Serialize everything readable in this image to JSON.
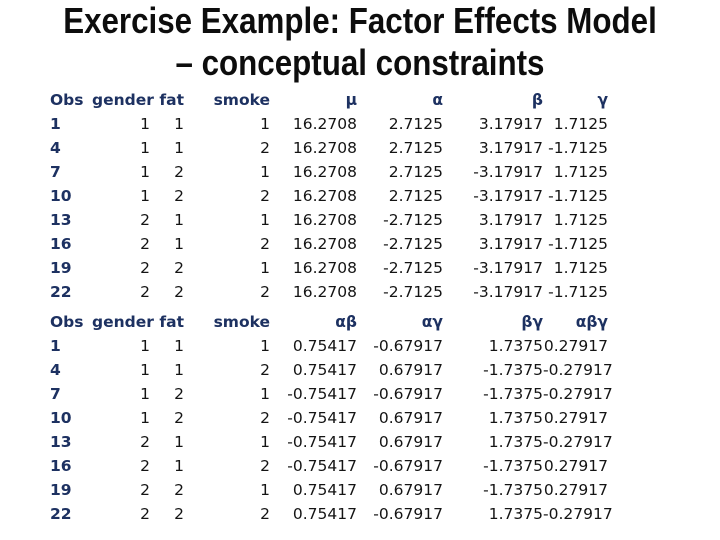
{
  "title": {
    "line1": "Exercise Example: Factor Effects Model",
    "line2": "– conceptual constraints"
  },
  "colors": {
    "header_navy": "#1d3161",
    "body_text": "#141414",
    "title_text": "#0d0d0d",
    "background": "#ffffff"
  },
  "table1": {
    "columns": [
      "Obs",
      "gender",
      "fat",
      "smoke",
      "μ",
      "α",
      "β",
      "γ"
    ],
    "rows": [
      [
        "1",
        "1",
        "1",
        "1",
        "16.2708",
        "2.7125",
        "3.17917",
        "1.7125"
      ],
      [
        "4",
        "1",
        "1",
        "2",
        "16.2708",
        "2.7125",
        "3.17917",
        "-1.7125"
      ],
      [
        "7",
        "1",
        "2",
        "1",
        "16.2708",
        "2.7125",
        "-3.17917",
        "1.7125"
      ],
      [
        "10",
        "1",
        "2",
        "2",
        "16.2708",
        "2.7125",
        "-3.17917",
        "-1.7125"
      ],
      [
        "13",
        "2",
        "1",
        "1",
        "16.2708",
        "-2.7125",
        "3.17917",
        "1.7125"
      ],
      [
        "16",
        "2",
        "1",
        "2",
        "16.2708",
        "-2.7125",
        "3.17917",
        "-1.7125"
      ],
      [
        "19",
        "2",
        "2",
        "1",
        "16.2708",
        "-2.7125",
        "-3.17917",
        "1.7125"
      ],
      [
        "22",
        "2",
        "2",
        "2",
        "16.2708",
        "-2.7125",
        "-3.17917",
        "-1.7125"
      ]
    ]
  },
  "table2": {
    "columns": [
      "Obs",
      "gender",
      "fat",
      "smoke",
      "αβ",
      "αγ",
      "βγ",
      "αβγ"
    ],
    "rows": [
      [
        "1",
        "1",
        "1",
        "1",
        "0.75417",
        "-0.67917",
        "1.7375",
        "0.27917"
      ],
      [
        "4",
        "1",
        "1",
        "2",
        "0.75417",
        "0.67917",
        "-1.7375",
        "-0.27917"
      ],
      [
        "7",
        "1",
        "2",
        "1",
        "-0.75417",
        "-0.67917",
        "-1.7375",
        "-0.27917"
      ],
      [
        "10",
        "1",
        "2",
        "2",
        "-0.75417",
        "0.67917",
        "1.7375",
        "0.27917"
      ],
      [
        "13",
        "2",
        "1",
        "1",
        "-0.75417",
        "0.67917",
        "1.7375",
        "-0.27917"
      ],
      [
        "16",
        "2",
        "1",
        "2",
        "-0.75417",
        "-0.67917",
        "-1.7375",
        "0.27917"
      ],
      [
        "19",
        "2",
        "2",
        "1",
        "0.75417",
        "0.67917",
        "-1.7375",
        "0.27917"
      ],
      [
        "22",
        "2",
        "2",
        "2",
        "0.75417",
        "-0.67917",
        "1.7375",
        "-0.27917"
      ]
    ]
  }
}
